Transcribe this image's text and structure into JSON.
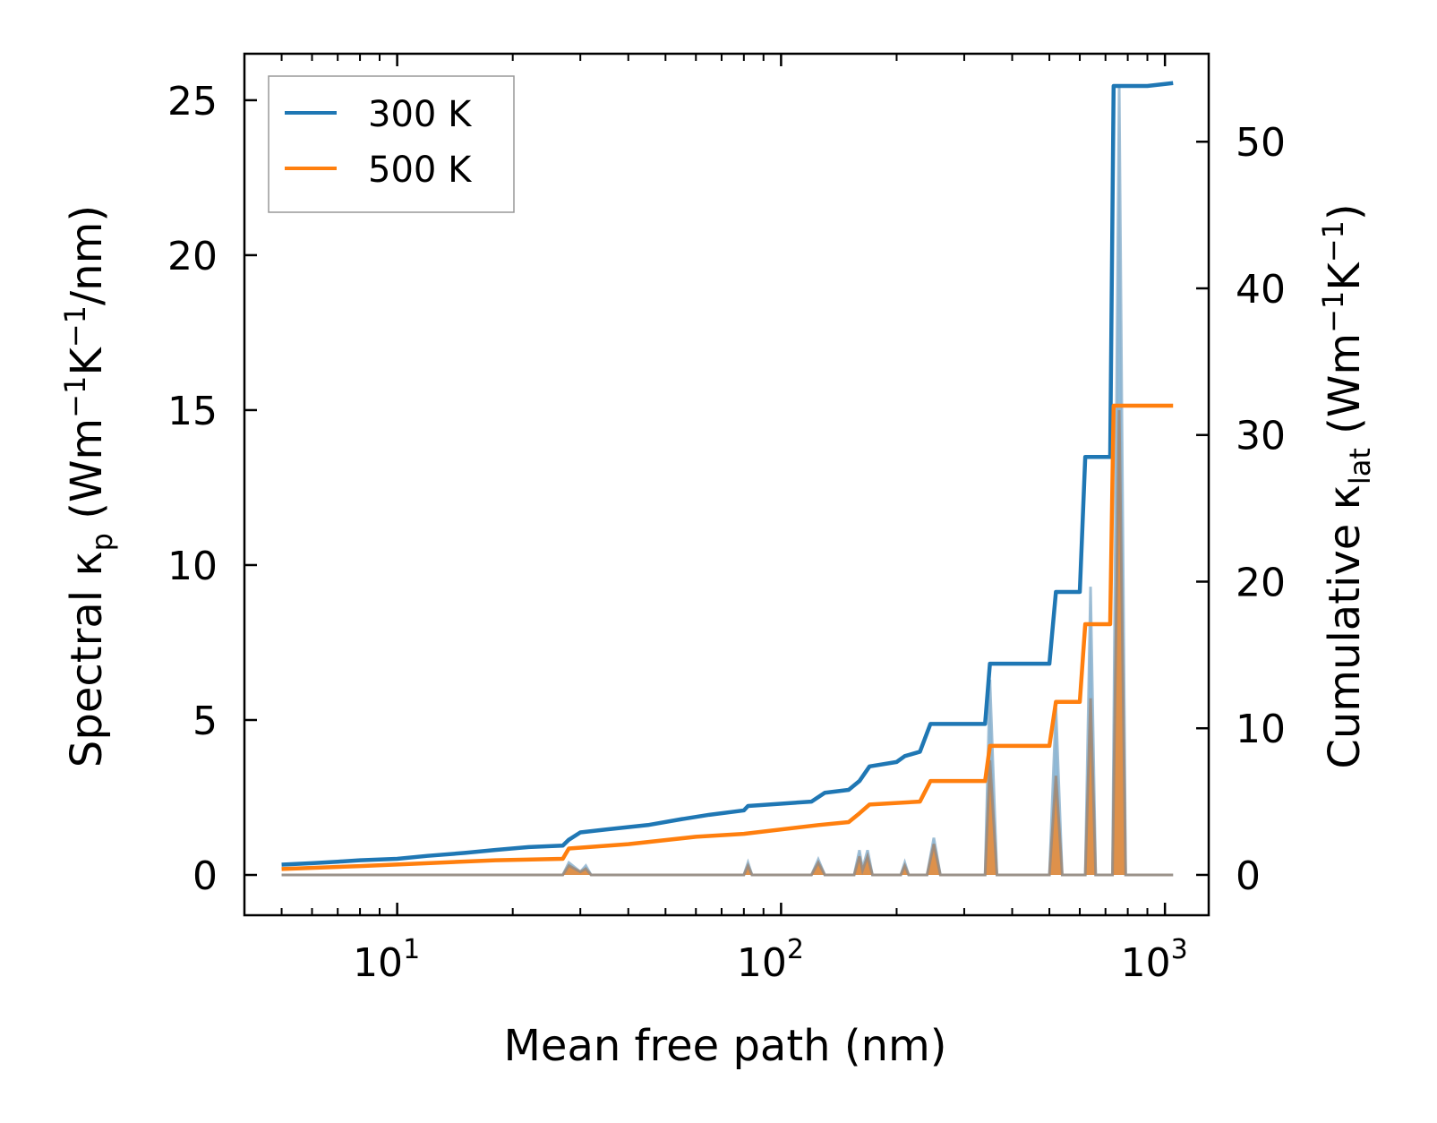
{
  "chart_data": {
    "type": "line",
    "xlabel": "Mean free path (nm)",
    "ylabel_left": {
      "base": "Spectral κ",
      "sub": "p",
      "unit_prefix": " (Wm",
      "sup1": "−1",
      "unit_mid": "K",
      "sup2": "−1",
      "unit_suffix": "/nm)"
    },
    "ylabel_right": {
      "base": "Cumulative κ",
      "sub": "lat",
      "unit_prefix": " (Wm",
      "sup1": "−1",
      "unit_mid": "K",
      "sup2": "−1",
      "unit_suffix": ")"
    },
    "x_scale": "log",
    "xlim": [
      4,
      1300
    ],
    "ylim_left": [
      -1.3,
      26.5
    ],
    "ylim_right": [
      -2.75,
      56.0
    ],
    "x_ticks": [
      {
        "value": 10,
        "base": "10",
        "exp": "1"
      },
      {
        "value": 100,
        "base": "10",
        "exp": "2"
      },
      {
        "value": 1000,
        "base": "10",
        "exp": "3"
      }
    ],
    "y_ticks_left": [
      {
        "value": 0,
        "label": "0"
      },
      {
        "value": 5,
        "label": "5"
      },
      {
        "value": 10,
        "label": "10"
      },
      {
        "value": 15,
        "label": "15"
      },
      {
        "value": 20,
        "label": "20"
      },
      {
        "value": 25,
        "label": "25"
      }
    ],
    "y_ticks_right": [
      {
        "value": 0,
        "label": "0"
      },
      {
        "value": 10,
        "label": "10"
      },
      {
        "value": 20,
        "label": "20"
      },
      {
        "value": 30,
        "label": "30"
      },
      {
        "value": 40,
        "label": "40"
      },
      {
        "value": 50,
        "label": "50"
      }
    ],
    "legend": {
      "position": "top-left",
      "entries": [
        {
          "label": "300 K",
          "color": "#1f77b4"
        },
        {
          "label": "500 K",
          "color": "#ff7f0e"
        }
      ]
    },
    "series": [
      {
        "name": "300 K cumulative",
        "axis": "right",
        "color": "#1f77b4",
        "points": [
          [
            5,
            0.7
          ],
          [
            6,
            0.8
          ],
          [
            7,
            0.9
          ],
          [
            8,
            1.0
          ],
          [
            10,
            1.1
          ],
          [
            12,
            1.3
          ],
          [
            15,
            1.5
          ],
          [
            18,
            1.7
          ],
          [
            22,
            1.9
          ],
          [
            27,
            2.0
          ],
          [
            28,
            2.4
          ],
          [
            30,
            2.9
          ],
          [
            35,
            3.1
          ],
          [
            45,
            3.4
          ],
          [
            55,
            3.8
          ],
          [
            65,
            4.1
          ],
          [
            80,
            4.4
          ],
          [
            82,
            4.7
          ],
          [
            120,
            5.0
          ],
          [
            130,
            5.6
          ],
          [
            150,
            5.8
          ],
          [
            160,
            6.4
          ],
          [
            170,
            7.4
          ],
          [
            200,
            7.7
          ],
          [
            210,
            8.1
          ],
          [
            230,
            8.4
          ],
          [
            245,
            10.3
          ],
          [
            340,
            10.3
          ],
          [
            350,
            14.4
          ],
          [
            500,
            14.4
          ],
          [
            520,
            19.3
          ],
          [
            600,
            19.3
          ],
          [
            620,
            28.5
          ],
          [
            720,
            28.5
          ],
          [
            735,
            53.8
          ],
          [
            900,
            53.8
          ],
          [
            1050,
            54.0
          ]
        ]
      },
      {
        "name": "500 K cumulative",
        "axis": "right",
        "color": "#ff7f0e",
        "points": [
          [
            5,
            0.4
          ],
          [
            8,
            0.6
          ],
          [
            12,
            0.8
          ],
          [
            18,
            1.0
          ],
          [
            27,
            1.1
          ],
          [
            28,
            1.8
          ],
          [
            40,
            2.1
          ],
          [
            60,
            2.6
          ],
          [
            80,
            2.8
          ],
          [
            125,
            3.4
          ],
          [
            150,
            3.6
          ],
          [
            160,
            4.2
          ],
          [
            170,
            4.8
          ],
          [
            230,
            5.0
          ],
          [
            245,
            6.4
          ],
          [
            340,
            6.4
          ],
          [
            350,
            8.8
          ],
          [
            500,
            8.8
          ],
          [
            520,
            11.8
          ],
          [
            600,
            11.8
          ],
          [
            620,
            17.1
          ],
          [
            720,
            17.1
          ],
          [
            735,
            32.0
          ],
          [
            900,
            32.0
          ],
          [
            1050,
            32.0
          ]
        ]
      },
      {
        "name": "300 K spectral",
        "axis": "left",
        "color": "#1f77b4",
        "points": [
          [
            5,
            0
          ],
          [
            27,
            0
          ],
          [
            28,
            0.4
          ],
          [
            30,
            0.1
          ],
          [
            31,
            0.3
          ],
          [
            32,
            0
          ],
          [
            80,
            0
          ],
          [
            82,
            0.4
          ],
          [
            84,
            0
          ],
          [
            120,
            0
          ],
          [
            125,
            0.5
          ],
          [
            130,
            0
          ],
          [
            155,
            0
          ],
          [
            160,
            0.8
          ],
          [
            163,
            0.2
          ],
          [
            168,
            0.8
          ],
          [
            173,
            0
          ],
          [
            205,
            0
          ],
          [
            210,
            0.4
          ],
          [
            215,
            0
          ],
          [
            240,
            0
          ],
          [
            250,
            1.2
          ],
          [
            260,
            0
          ],
          [
            340,
            0
          ],
          [
            350,
            6.3
          ],
          [
            365,
            0
          ],
          [
            500,
            0
          ],
          [
            520,
            5.4
          ],
          [
            540,
            0
          ],
          [
            620,
            0
          ],
          [
            640,
            9.3
          ],
          [
            660,
            0
          ],
          [
            730,
            0
          ],
          [
            760,
            25.5
          ],
          [
            790,
            0
          ],
          [
            1050,
            0
          ]
        ]
      },
      {
        "name": "500 K spectral",
        "axis": "left",
        "color": "#ff7f0e",
        "points": [
          [
            5,
            0
          ],
          [
            27,
            0
          ],
          [
            28,
            0.3
          ],
          [
            30,
            0.1
          ],
          [
            31,
            0.2
          ],
          [
            32,
            0
          ],
          [
            80,
            0
          ],
          [
            82,
            0.3
          ],
          [
            84,
            0
          ],
          [
            120,
            0
          ],
          [
            125,
            0.4
          ],
          [
            130,
            0
          ],
          [
            155,
            0
          ],
          [
            160,
            0.6
          ],
          [
            163,
            0.15
          ],
          [
            168,
            0.6
          ],
          [
            173,
            0
          ],
          [
            205,
            0
          ],
          [
            210,
            0.3
          ],
          [
            215,
            0
          ],
          [
            240,
            0
          ],
          [
            250,
            1.0
          ],
          [
            260,
            0
          ],
          [
            340,
            0
          ],
          [
            350,
            3.7
          ],
          [
            365,
            0
          ],
          [
            500,
            0
          ],
          [
            520,
            3.2
          ],
          [
            540,
            0
          ],
          [
            620,
            0
          ],
          [
            640,
            5.7
          ],
          [
            660,
            0
          ],
          [
            730,
            0
          ],
          [
            760,
            15.0
          ],
          [
            790,
            0
          ],
          [
            1050,
            0
          ]
        ]
      }
    ]
  }
}
